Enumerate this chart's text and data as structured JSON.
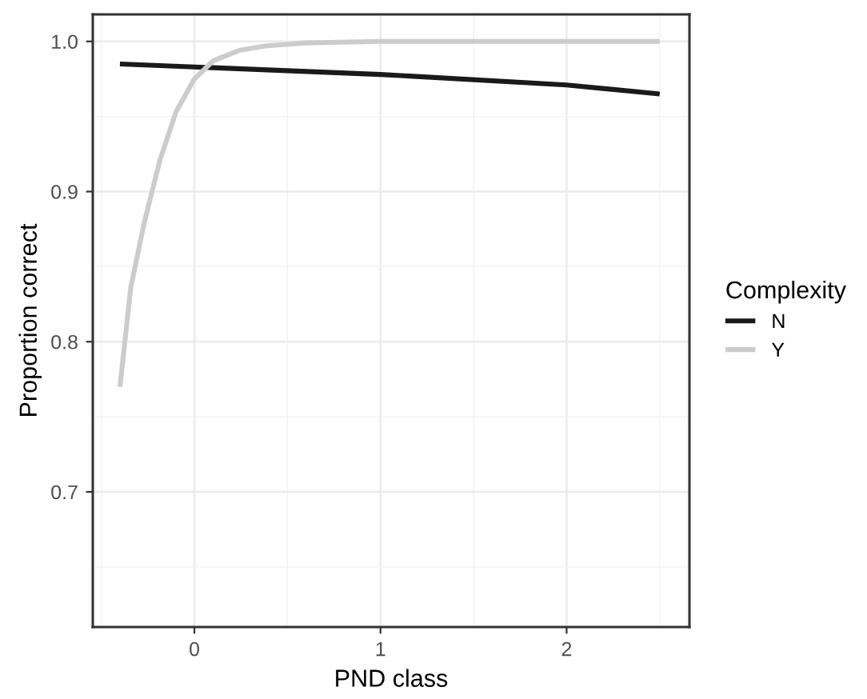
{
  "chart_data": {
    "type": "line",
    "xlabel": "PND class",
    "ylabel": "Proportion correct",
    "legend_title": "Complexity",
    "xlim": [
      -0.546,
      2.66
    ],
    "ylim": [
      0.61,
      1.018
    ],
    "xticks": [
      {
        "value": -0.5,
        "label": null
      },
      0,
      {
        "value": 0.5,
        "label": null
      },
      1,
      {
        "value": 1.5,
        "label": null
      },
      2,
      {
        "value": 2.5,
        "label": null
      }
    ],
    "yticks": [
      {
        "value": 0.65,
        "label": null
      },
      0.7,
      {
        "value": 0.75,
        "label": null
      },
      0.8,
      {
        "value": 0.85,
        "label": null
      },
      0.9,
      {
        "value": 0.95,
        "label": null
      },
      {
        "value": 1.0,
        "label": "1.0"
      }
    ],
    "grid": true,
    "legend": "right",
    "line_style": "solid",
    "marker": "none",
    "series": [
      {
        "name": "N",
        "color": "#1a1a1a",
        "x": [
          -0.4,
          0,
          1,
          2,
          2.5
        ],
        "values": [
          0.985,
          0.983,
          0.978,
          0.971,
          0.965
        ]
      },
      {
        "name": "Y",
        "color": "#cccccc",
        "x": [
          -0.4,
          -0.342,
          -0.27,
          -0.185,
          -0.099,
          0,
          0.1,
          0.24,
          0.38,
          0.6,
          1,
          2.5
        ],
        "values": [
          0.77,
          0.836,
          0.879,
          0.921,
          0.953,
          0.975,
          0.987,
          0.994,
          0.997,
          0.999,
          1.0,
          1.0
        ]
      }
    ]
  }
}
